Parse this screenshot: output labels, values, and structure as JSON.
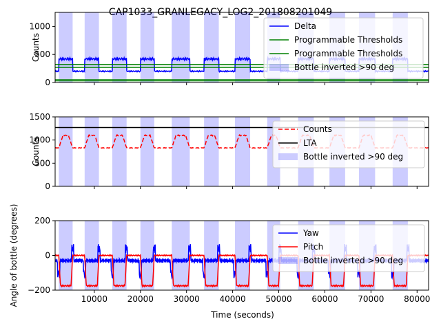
{
  "title": "CAP1033_GRANLEGACY_LOG2_201808201049",
  "xlabel": "Time (seconds)",
  "colors": {
    "band": "#0000ff",
    "delta": "#0000ff",
    "threshold": "#008000",
    "counts": "#ff0000",
    "lta": "#000000",
    "yaw": "#0000ff",
    "pitch": "#ff0000"
  },
  "chart_data": [
    {
      "type": "line",
      "title": "CAP1033_GRANLEGACY_LOG2_201808201049",
      "ylabel": "Counts",
      "xlim": [
        1500,
        82500
      ],
      "ylim": [
        0,
        1250
      ],
      "xticks": [],
      "yticks": [
        "0",
        "500",
        "1000"
      ],
      "ytick_values": [
        0,
        500,
        1000
      ],
      "legend": "upper-right",
      "bottle_inverted_label": "Bottle inverted >90 deg",
      "bottle_inverted_bands": [
        [
          2300,
          5300
        ],
        [
          7900,
          11000
        ],
        [
          13900,
          17000
        ],
        [
          20000,
          23000
        ],
        [
          26800,
          30700
        ],
        [
          33800,
          37000
        ],
        [
          40500,
          43800
        ],
        [
          47500,
          50300
        ],
        [
          54200,
          57600
        ],
        [
          61000,
          64400
        ],
        [
          67400,
          70900
        ],
        [
          74700,
          78000
        ]
      ],
      "series": [
        {
          "name": "Delta",
          "kind": "delta",
          "levels": [
            450,
            200
          ],
          "style": "solid"
        },
        {
          "name": "Programmable Thresholds",
          "kind": "hline",
          "value": 320,
          "style": "solid"
        },
        {
          "name": "Programmable Thresholds",
          "kind": "hline",
          "value": 270,
          "style": "solid"
        }
      ]
    },
    {
      "type": "line",
      "ylabel": "Counts",
      "xlim": [
        1500,
        82500
      ],
      "ylim": [
        0,
        1500
      ],
      "xticks": [],
      "yticks": [
        "0",
        "500",
        "1000",
        "1500"
      ],
      "ytick_values": [
        0,
        500,
        1000,
        1500
      ],
      "legend": "right",
      "series": [
        {
          "name": "Counts",
          "kind": "counts",
          "levels": [
            1100,
            830
          ],
          "style": "dashed"
        },
        {
          "name": "LTA",
          "kind": "hline",
          "value": 1270,
          "style": "solid"
        }
      ]
    },
    {
      "type": "line",
      "ylabel": "Angle of bottle (degrees)",
      "xlabel": "Time (seconds)",
      "xlim": [
        1500,
        82500
      ],
      "ylim": [
        -200,
        200
      ],
      "xticks": [
        "10000",
        "20000",
        "30000",
        "40000",
        "50000",
        "60000",
        "70000",
        "80000"
      ],
      "xtick_values": [
        10000,
        20000,
        30000,
        40000,
        50000,
        60000,
        70000,
        80000
      ],
      "yticks": [
        "−200",
        "0",
        "200"
      ],
      "ytick_values": [
        -200,
        0,
        200
      ],
      "legend": "right",
      "series": [
        {
          "name": "Yaw",
          "kind": "yaw",
          "levels": [
            -30,
            -30
          ],
          "style": "solid"
        },
        {
          "name": "Pitch",
          "kind": "pitch",
          "levels": [
            0,
            -175
          ],
          "style": "solid"
        }
      ]
    }
  ]
}
